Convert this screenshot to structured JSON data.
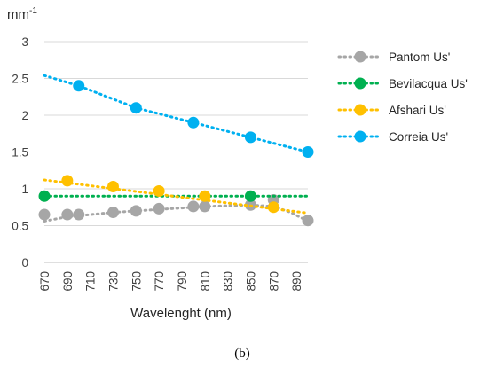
{
  "chart_data": {
    "type": "line",
    "ylabel": "mm-1",
    "ylabel_main": "mm",
    "ylabel_sup": "-1",
    "xlabel": "Wavelenght (nm)",
    "xlim": [
      670,
      900
    ],
    "ylim": [
      0,
      3
    ],
    "x_ticks": [
      "670",
      "690",
      "710",
      "730",
      "750",
      "770",
      "790",
      "810",
      "830",
      "850",
      "870",
      "890"
    ],
    "y_ticks": [
      "0",
      "0.5",
      "1",
      "1.5",
      "2",
      "2.5",
      "3"
    ],
    "grid": "horizontal",
    "legend_position": "right",
    "series": [
      {
        "name": "Pantom Us'",
        "color": "#a6a6a6",
        "line": [
          [
            670,
            0.56
          ],
          [
            690,
            0.62
          ],
          [
            710,
            0.65
          ],
          [
            730,
            0.68
          ],
          [
            750,
            0.7
          ],
          [
            770,
            0.72
          ],
          [
            790,
            0.74
          ],
          [
            810,
            0.76
          ],
          [
            830,
            0.77
          ],
          [
            850,
            0.78
          ],
          [
            870,
            0.76
          ],
          [
            885,
            0.68
          ],
          [
            900,
            0.56
          ]
        ],
        "points": [
          [
            670,
            0.65
          ],
          [
            690,
            0.65
          ],
          [
            700,
            0.65
          ],
          [
            730,
            0.68
          ],
          [
            750,
            0.7
          ],
          [
            770,
            0.73
          ],
          [
            800,
            0.76
          ],
          [
            810,
            0.76
          ],
          [
            850,
            0.78
          ],
          [
            870,
            0.85
          ],
          [
            900,
            0.57
          ]
        ]
      },
      {
        "name": "Bevilacqua Us'",
        "color": "#00b050",
        "line": [
          [
            670,
            0.9
          ],
          [
            900,
            0.9
          ]
        ],
        "points": [
          [
            670,
            0.9
          ],
          [
            850,
            0.9
          ]
        ]
      },
      {
        "name": "Afshari Us'",
        "color": "#ffc000",
        "line": [
          [
            670,
            1.12
          ],
          [
            900,
            0.67
          ]
        ],
        "points": [
          [
            690,
            1.11
          ],
          [
            730,
            1.03
          ],
          [
            770,
            0.97
          ],
          [
            810,
            0.9
          ],
          [
            870,
            0.75
          ]
        ]
      },
      {
        "name": "Correia Us'",
        "color": "#00b0f0",
        "line": [
          [
            670,
            2.54
          ],
          [
            700,
            2.4
          ],
          [
            750,
            2.1
          ],
          [
            800,
            1.9
          ],
          [
            850,
            1.7
          ],
          [
            900,
            1.5
          ]
        ],
        "points": [
          [
            700,
            2.4
          ],
          [
            750,
            2.1
          ],
          [
            800,
            1.9
          ],
          [
            850,
            1.7
          ],
          [
            900,
            1.5
          ]
        ]
      }
    ]
  },
  "caption": "(b)"
}
